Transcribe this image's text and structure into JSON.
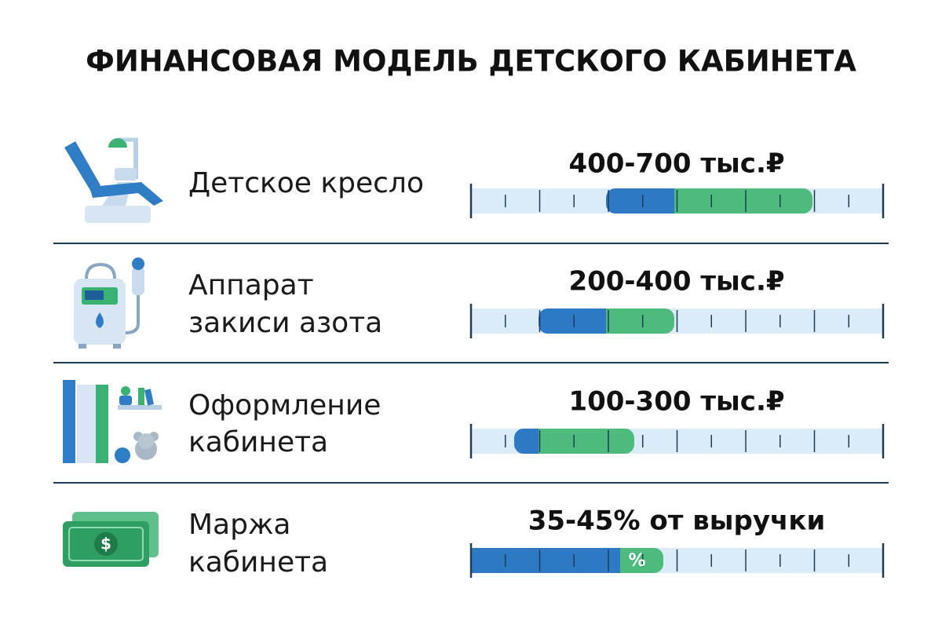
{
  "title": "ФИНАНСОВАЯ МОДЕЛЬ ДЕТСКОГО КАБИНЕТА",
  "rows": [
    {
      "label": [
        "Детское кресло"
      ],
      "value": "400-700 тыс.₽"
    },
    {
      "label": [
        "Аппарат",
        "закиси азота"
      ],
      "value": "200-400 тыс.₽"
    },
    {
      "label": [
        "Оформление",
        "кабинета"
      ],
      "value": "100-300 тыс.₽"
    },
    {
      "label": [
        "Маржа",
        "кабинета"
      ],
      "value": "35-45% от выручки",
      "badge": "%"
    }
  ]
}
